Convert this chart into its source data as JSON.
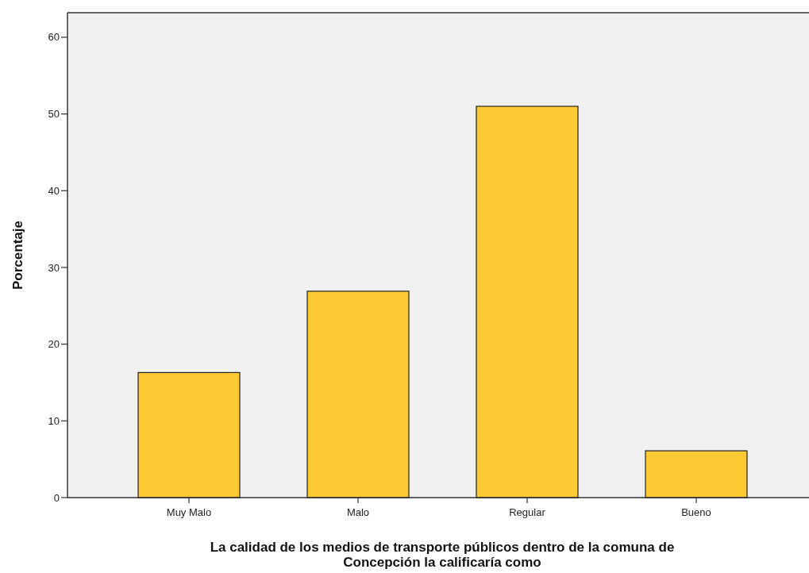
{
  "chart_data": {
    "type": "bar",
    "xlabel": "La calidad de los medios de transporte públicos dentro de la comuna de Concepción la calificaría como",
    "ylabel": "Porcentaje",
    "categories": [
      "Muy Malo",
      "Malo",
      "Regular",
      "Bueno"
    ],
    "values": [
      16.3,
      26.9,
      51.0,
      6.1
    ],
    "color": "#fdca33",
    "ylim": [
      0,
      63.2
    ],
    "yticks": [
      0,
      10,
      20,
      30,
      40,
      50,
      60
    ]
  }
}
